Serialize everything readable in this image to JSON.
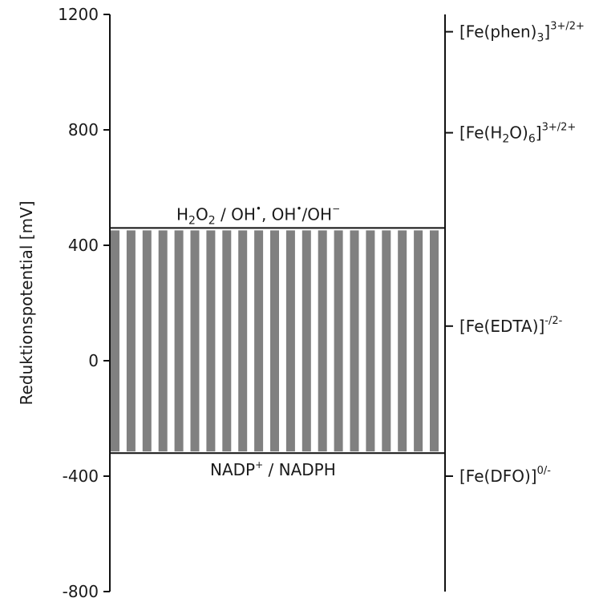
{
  "chart_data": {
    "type": "range-diagram",
    "ylabel": "Reduktionspotential [mV]",
    "ylim": [
      -800,
      1200
    ],
    "yticks": [
      1200,
      800,
      400,
      0,
      -400,
      -800
    ],
    "window": {
      "upper_mV": 460,
      "lower_mV": -320,
      "fill_color": "#808080",
      "stripe_count": 21,
      "upper_label": {
        "species1_a": "H",
        "species1_sub1": "2",
        "species1_b": "O",
        "species1_sub2": "2",
        "sep": " / OH",
        "dot1": "•",
        "comma": ", OH",
        "dot2": "•",
        "slash": "/OH",
        "minus": "−"
      },
      "lower_label": {
        "part1": "NADP",
        "sup": "+",
        "part2": " / NADPH"
      }
    },
    "complexes": [
      {
        "mV": 1140,
        "base": "[Fe(phen)",
        "sub": "3",
        "close": "]",
        "sup": "3+/2+"
      },
      {
        "mV": 790,
        "base": "[Fe(H",
        "sub": "2",
        "mid": "O)",
        "sub2": "6",
        "close": "]",
        "sup": "3+/2+"
      },
      {
        "mV": 120,
        "base": "[Fe(EDTA)]",
        "sup": "-/2-"
      },
      {
        "mV": -400,
        "base": "[Fe(DFO)]",
        "sup": "0/-"
      }
    ]
  }
}
